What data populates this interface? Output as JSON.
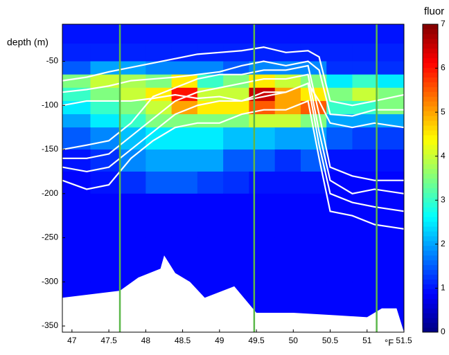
{
  "chart_data": {
    "type": "heatmap",
    "ylabel": "depth (m)",
    "xlabel": "°F",
    "colorbar_label": "fluor",
    "colormap": "jet",
    "xlim": [
      46.87,
      51.5
    ],
    "ylim": [
      -357,
      -8
    ],
    "zlim": [
      0,
      7
    ],
    "xticks": [
      47,
      47.5,
      48,
      48.5,
      49,
      49.5,
      50,
      50.5,
      51,
      51.5
    ],
    "yticks": [
      -50,
      -100,
      -150,
      -200,
      -250,
      -300,
      -350
    ],
    "zticks": [
      0,
      1,
      2,
      3,
      4,
      5,
      6,
      7
    ],
    "x_edges": [
      46.87,
      47.25,
      47.65,
      48.0,
      48.35,
      48.7,
      49.05,
      49.4,
      49.75,
      50.1,
      50.45,
      50.8,
      51.15,
      51.5
    ],
    "y_edges": [
      -8,
      -30,
      -50,
      -65,
      -80,
      -95,
      -110,
      -125,
      -150,
      -175,
      -200,
      -250,
      -300,
      -357
    ],
    "z": [
      [
        1.0,
        1.0,
        1.0,
        1.0,
        1.0,
        1.0,
        1.0,
        1.0,
        1.0,
        1.0,
        1.0,
        1.0,
        1.0
      ],
      [
        1.1,
        1.1,
        1.1,
        1.1,
        1.1,
        1.1,
        1.1,
        1.1,
        1.1,
        1.1,
        1.1,
        1.1,
        1.1
      ],
      [
        1.5,
        2,
        2,
        1.8,
        1.8,
        1.8,
        1.5,
        1.8,
        1.8,
        1.8,
        1.2,
        1.2,
        1.2
      ],
      [
        3.5,
        4,
        3.8,
        3.5,
        4.5,
        3,
        3.5,
        4.5,
        4,
        3.5,
        2.5,
        3,
        2.5
      ],
      [
        3,
        3.5,
        4,
        4.5,
        6,
        4,
        4,
        6.5,
        5,
        4.5,
        3.5,
        4,
        3.5
      ],
      [
        2.5,
        3,
        3.5,
        4,
        5,
        4.5,
        4.5,
        5.5,
        5,
        5.5,
        3,
        3,
        3.5
      ],
      [
        2,
        2.5,
        3,
        3.5,
        3.5,
        3.5,
        3.5,
        4,
        4,
        3.5,
        2,
        2,
        2
      ],
      [
        1.5,
        1.8,
        2.2,
        2.5,
        2.5,
        2.5,
        2.2,
        2.2,
        2,
        2,
        1.5,
        1.3,
        1.3
      ],
      [
        1.0,
        1.2,
        1.8,
        2,
        2,
        2,
        1.5,
        1.5,
        1.2,
        1.5,
        1,
        1,
        1
      ],
      [
        0.9,
        1,
        1.2,
        1.5,
        1.5,
        1.3,
        1.2,
        1,
        1,
        1,
        0.9,
        0.9,
        0.9
      ],
      [
        0.9,
        0.9,
        0.9,
        0.9,
        0.9,
        0.9,
        0.9,
        0.9,
        0.9,
        0.9,
        0.9,
        0.9,
        0.9
      ],
      [
        0.9,
        0.9,
        0.9,
        0.9,
        0.9,
        0.9,
        0.9,
        0.9,
        0.9,
        0.9,
        0.9,
        0.9,
        0.9
      ],
      [
        0.9,
        0.9,
        0.9,
        0.9,
        0.9,
        0.9,
        0.9,
        0.9,
        0.9,
        0.9,
        0.9,
        0.9,
        0.9
      ]
    ],
    "contour_color": "#ffffff",
    "contour_x": [
      46.87,
      47.2,
      47.5,
      47.8,
      48.1,
      48.4,
      48.7,
      49.0,
      49.3,
      49.6,
      49.9,
      50.2,
      50.35,
      50.5,
      50.8,
      51.1,
      51.5
    ],
    "contours": [
      [
        -72,
        -68,
        -62,
        -57,
        -52,
        -47,
        -42,
        -40,
        -38,
        -34,
        -40,
        -38,
        -45,
        -95,
        -100,
        -95,
        -88
      ],
      [
        -85,
        -82,
        -78,
        -72,
        -70,
        -68,
        -65,
        -62,
        -55,
        -50,
        -55,
        -50,
        -60,
        -110,
        -112,
        -105,
        -105
      ],
      [
        -100,
        -95,
        -95,
        -95,
        -92,
        -88,
        -92,
        -90,
        -95,
        -90,
        -85,
        -75,
        -95,
        -120,
        -125,
        -120,
        -125
      ],
      [
        -150,
        -145,
        -140,
        -120,
        -90,
        -80,
        -70,
        -65,
        -65,
        -60,
        -60,
        -55,
        -110,
        -170,
        -180,
        -185,
        -185
      ],
      [
        -160,
        -160,
        -155,
        -135,
        -115,
        -95,
        -85,
        -80,
        -75,
        -70,
        -70,
        -65,
        -130,
        -185,
        -200,
        -195,
        -200
      ],
      [
        -170,
        -175,
        -170,
        -150,
        -130,
        -110,
        -100,
        -95,
        -95,
        -85,
        -85,
        -75,
        -145,
        -200,
        -210,
        -215,
        -220
      ],
      [
        -185,
        -195,
        -190,
        -160,
        -140,
        -125,
        -120,
        -120,
        -110,
        -105,
        -105,
        -95,
        -160,
        -220,
        -225,
        -235,
        -240
      ]
    ],
    "vline_color": "#5cb84a",
    "vlines": [
      47.65,
      49.47,
      51.13
    ],
    "seafloor_color": "#ffffff",
    "seafloor_x": [
      46.87,
      47.65,
      47.9,
      48.2,
      48.25,
      48.4,
      48.6,
      48.8,
      49.2,
      49.5,
      50.0,
      50.6,
      51.0,
      51.2,
      51.4,
      51.5
    ],
    "seafloor": [
      -318,
      -310,
      -295,
      -285,
      -270,
      -290,
      -300,
      -318,
      -305,
      -335,
      -335,
      -338,
      -340,
      -330,
      -330,
      -357
    ]
  }
}
